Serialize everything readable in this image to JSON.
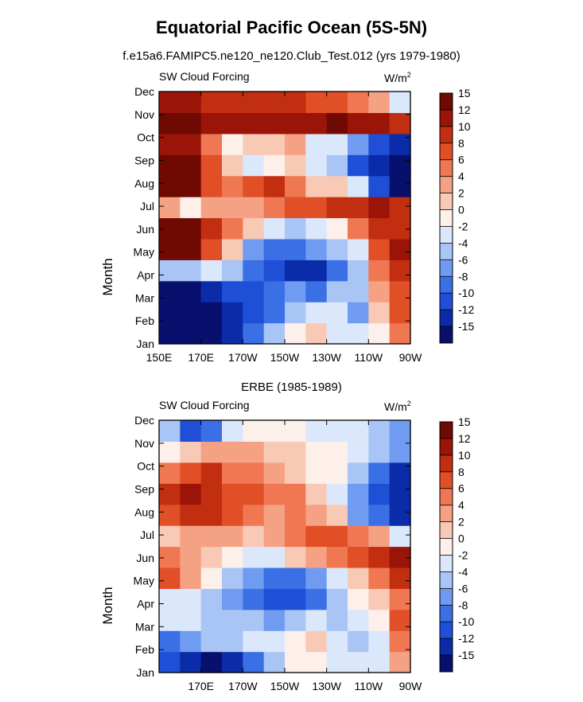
{
  "page": {
    "title": "Equatorial Pacific Ocean (5S-5N)",
    "colors": [
      "#08106e",
      "#0a2ca8",
      "#1f4fd6",
      "#3a6fe6",
      "#6f9cf0",
      "#a8c5f6",
      "#dbe8fb",
      "#fdf0ea",
      "#f8c9b5",
      "#f5a183",
      "#ef7752",
      "#e04f26",
      "#c22e10",
      "#9b1408",
      "#6e0a02"
    ]
  },
  "chart_data": [
    {
      "type": "heatmap",
      "panel_title": "f.e15a6.FAMIPC5.ne120_ne120.Club_Test.012 (yrs 1979-1980)",
      "left_label": "SW Cloud Forcing",
      "units_label": "W/m",
      "units_sup": "2",
      "ylabel": "Month",
      "xlabel": "",
      "x_ticks": [
        "150E",
        "170E",
        "170W",
        "150W",
        "130W",
        "110W",
        "90W"
      ],
      "y_ticks": [
        "Jan",
        "Feb",
        "Mar",
        "Apr",
        "May",
        "Jun",
        "Jul",
        "Aug",
        "Sep",
        "Oct",
        "Nov",
        "Dec"
      ],
      "xlim": [
        150,
        270
      ],
      "colorbar": {
        "labels": [
          "-15",
          "-12",
          "-10",
          "-8",
          "-6",
          "-4",
          "-2",
          "0",
          "2",
          "4",
          "6",
          "8",
          "10",
          "12",
          "15"
        ]
      },
      "lon_centers": [
        155,
        165,
        175,
        185,
        195,
        205,
        215,
        225,
        235,
        245,
        255,
        265
      ],
      "months": [
        "Jan",
        "Feb",
        "Mar",
        "Apr",
        "May",
        "Jun",
        "Jul",
        "Aug",
        "Sep",
        "Oct",
        "Nov",
        "Dec"
      ],
      "values": [
        [
          -15,
          -15,
          -15,
          -12,
          -8,
          -4,
          0,
          2,
          -2,
          -2,
          0,
          6
        ],
        [
          -15,
          -15,
          -15,
          -12,
          -10,
          -8,
          -4,
          -2,
          -2,
          -6,
          2,
          8
        ],
        [
          -15,
          -15,
          -12,
          -10,
          -10,
          -8,
          -6,
          -8,
          -4,
          -4,
          4,
          8
        ],
        [
          -4,
          -4,
          -2,
          -4,
          -8,
          -10,
          -12,
          -12,
          -8,
          -4,
          6,
          10
        ],
        [
          14,
          14,
          8,
          2,
          -6,
          -8,
          -8,
          -6,
          -4,
          -2,
          8,
          12
        ],
        [
          14,
          14,
          10,
          6,
          2,
          -2,
          -4,
          -2,
          0,
          6,
          10,
          10
        ],
        [
          4,
          0,
          4,
          4,
          4,
          6,
          8,
          8,
          10,
          10,
          12,
          10
        ],
        [
          15,
          14,
          8,
          6,
          8,
          10,
          6,
          2,
          2,
          -2,
          -10,
          -15
        ],
        [
          15,
          14,
          8,
          2,
          -2,
          0,
          2,
          -2,
          -4,
          -10,
          -12,
          -15
        ],
        [
          12,
          12,
          6,
          0,
          2,
          2,
          4,
          -2,
          -2,
          -6,
          -10,
          -12
        ],
        [
          14,
          14,
          12,
          12,
          12,
          12,
          12,
          12,
          14,
          12,
          12,
          10
        ],
        [
          12,
          12,
          10,
          10,
          10,
          10,
          10,
          8,
          8,
          6,
          4,
          -2
        ]
      ]
    },
    {
      "type": "heatmap",
      "panel_title": "ERBE (1985-1989)",
      "left_label": "SW Cloud Forcing",
      "units_label": "W/m",
      "units_sup": "2",
      "ylabel": "Month",
      "xlabel": "",
      "x_ticks": [
        "170E",
        "170W",
        "150W",
        "130W",
        "110W",
        "90W"
      ],
      "y_ticks": [
        "Jan",
        "Feb",
        "Mar",
        "Apr",
        "May",
        "Jun",
        "Jul",
        "Aug",
        "Sep",
        "Oct",
        "Nov",
        "Dec"
      ],
      "xlim": [
        150,
        270
      ],
      "colorbar": {
        "labels": [
          "-15",
          "-12",
          "-10",
          "-8",
          "-6",
          "-4",
          "-2",
          "0",
          "2",
          "4",
          "6",
          "8",
          "10",
          "12",
          "15"
        ]
      },
      "lon_centers": [
        155,
        165,
        175,
        185,
        195,
        205,
        215,
        225,
        235,
        245,
        255,
        265
      ],
      "months": [
        "Jan",
        "Feb",
        "Mar",
        "Apr",
        "May",
        "Jun",
        "Jul",
        "Aug",
        "Sep",
        "Oct",
        "Nov",
        "Dec"
      ],
      "values": [
        [
          -10,
          -12,
          -15,
          -12,
          -8,
          -4,
          0,
          0,
          -2,
          -2,
          -2,
          4
        ],
        [
          -8,
          -6,
          -4,
          -4,
          -2,
          -2,
          0,
          2,
          -2,
          -4,
          -2,
          6
        ],
        [
          -2,
          -2,
          -4,
          -4,
          -4,
          -6,
          -4,
          -2,
          -4,
          -2,
          0,
          8
        ],
        [
          -2,
          -2,
          -4,
          -6,
          -8,
          -10,
          -10,
          -8,
          -4,
          0,
          2,
          6
        ],
        [
          8,
          4,
          0,
          -4,
          -6,
          -8,
          -8,
          -6,
          -2,
          2,
          6,
          10
        ],
        [
          6,
          4,
          2,
          0,
          -2,
          -2,
          2,
          4,
          6,
          8,
          10,
          12
        ],
        [
          2,
          4,
          4,
          4,
          2,
          4,
          6,
          8,
          8,
          6,
          4,
          -2
        ],
        [
          8,
          10,
          10,
          8,
          6,
          4,
          6,
          4,
          2,
          -6,
          -8,
          -12
        ],
        [
          10,
          12,
          10,
          8,
          8,
          6,
          6,
          2,
          -2,
          -6,
          -10,
          -12
        ],
        [
          6,
          8,
          10,
          6,
          6,
          4,
          2,
          0,
          0,
          -4,
          -8,
          -12
        ],
        [
          0,
          2,
          4,
          4,
          4,
          2,
          2,
          0,
          0,
          -2,
          -4,
          -6
        ],
        [
          -4,
          -10,
          -8,
          -2,
          0,
          0,
          0,
          -2,
          -2,
          -2,
          -4,
          -6
        ]
      ]
    }
  ]
}
